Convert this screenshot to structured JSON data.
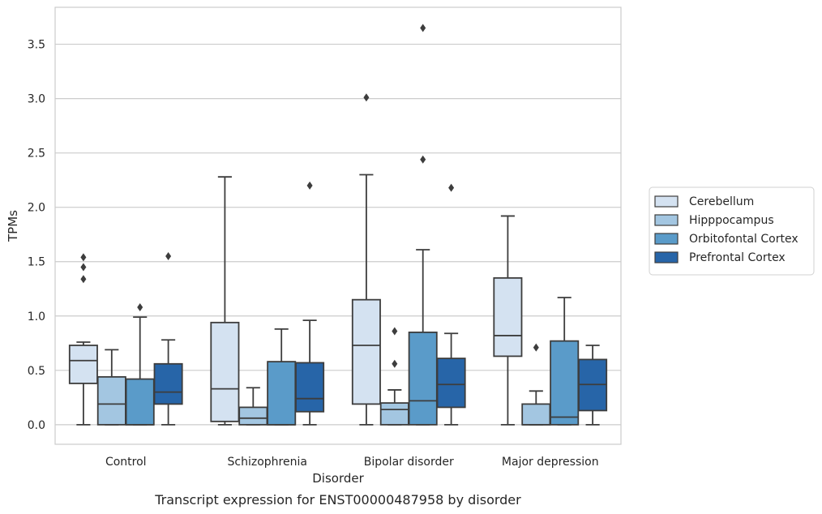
{
  "chart_data": {
    "type": "box",
    "xlabel": "Disorder",
    "ylabel": "TPMs",
    "caption": "Transcript expression for ENST00000487958 by disorder",
    "ylim": [
      -0.18,
      3.84
    ],
    "yticks": [
      "0.0",
      "0.5",
      "1.0",
      "1.5",
      "2.0",
      "2.5",
      "3.0",
      "3.5"
    ],
    "ytick_values": [
      0,
      0.5,
      1.0,
      1.5,
      2.0,
      2.5,
      3.0,
      3.5
    ],
    "grid": true,
    "legend_position": "right",
    "categories": [
      "Control",
      "Schizophrenia",
      "Bipolar disorder",
      "Major depression"
    ],
    "series": [
      {
        "name": "Cerebellum",
        "color": "#d4e2f1",
        "boxes": [
          {
            "whisker_low": 0.0,
            "q1": 0.38,
            "median": 0.59,
            "q3": 0.73,
            "whisker_high": 0.76,
            "outliers": [
              1.34,
              1.45,
              1.54
            ]
          },
          {
            "whisker_low": 0.0,
            "q1": 0.03,
            "median": 0.33,
            "q3": 0.94,
            "whisker_high": 2.28,
            "outliers": []
          },
          {
            "whisker_low": 0.0,
            "q1": 0.19,
            "median": 0.73,
            "q3": 1.15,
            "whisker_high": 2.3,
            "outliers": [
              3.01
            ]
          },
          {
            "whisker_low": 0.0,
            "q1": 0.63,
            "median": 0.82,
            "q3": 1.35,
            "whisker_high": 1.92,
            "outliers": []
          }
        ]
      },
      {
        "name": "Hipppocampus",
        "color": "#a3c6e1",
        "boxes": [
          {
            "whisker_low": 0.0,
            "q1": 0.0,
            "median": 0.19,
            "q3": 0.44,
            "whisker_high": 0.69,
            "outliers": []
          },
          {
            "whisker_low": 0.0,
            "q1": 0.0,
            "median": 0.06,
            "q3": 0.16,
            "whisker_high": 0.34,
            "outliers": []
          },
          {
            "whisker_low": 0.0,
            "q1": 0.0,
            "median": 0.14,
            "q3": 0.2,
            "whisker_high": 0.32,
            "outliers": [
              0.56,
              0.86
            ]
          },
          {
            "whisker_low": 0.0,
            "q1": 0.0,
            "median": 0.0,
            "q3": 0.19,
            "whisker_high": 0.31,
            "outliers": [
              0.71
            ]
          }
        ]
      },
      {
        "name": "Orbitofontal Cortex",
        "color": "#5a9bc9",
        "boxes": [
          {
            "whisker_low": 0.0,
            "q1": 0.0,
            "median": 0.0,
            "q3": 0.42,
            "whisker_high": 0.99,
            "outliers": [
              1.08
            ]
          },
          {
            "whisker_low": 0.0,
            "q1": 0.0,
            "median": 0.0,
            "q3": 0.58,
            "whisker_high": 0.88,
            "outliers": []
          },
          {
            "whisker_low": 0.0,
            "q1": 0.0,
            "median": 0.22,
            "q3": 0.85,
            "whisker_high": 1.61,
            "outliers": [
              2.44,
              3.65
            ]
          },
          {
            "whisker_low": 0.0,
            "q1": 0.0,
            "median": 0.07,
            "q3": 0.77,
            "whisker_high": 1.17,
            "outliers": []
          }
        ]
      },
      {
        "name": "Prefrontal Cortex",
        "color": "#2765a8",
        "boxes": [
          {
            "whisker_low": 0.0,
            "q1": 0.19,
            "median": 0.3,
            "q3": 0.56,
            "whisker_high": 0.78,
            "outliers": [
              1.55
            ]
          },
          {
            "whisker_low": 0.0,
            "q1": 0.12,
            "median": 0.24,
            "q3": 0.57,
            "whisker_high": 0.96,
            "outliers": [
              2.2
            ]
          },
          {
            "whisker_low": 0.0,
            "q1": 0.16,
            "median": 0.37,
            "q3": 0.61,
            "whisker_high": 0.84,
            "outliers": [
              2.18
            ]
          },
          {
            "whisker_low": 0.0,
            "q1": 0.13,
            "median": 0.37,
            "q3": 0.6,
            "whisker_high": 0.73,
            "outliers": []
          }
        ]
      }
    ]
  }
}
